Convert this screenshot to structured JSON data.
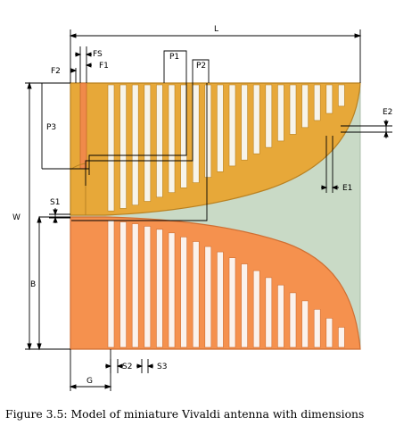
{
  "figure": {
    "caption": "Figure 3.5: Model of miniature Vivaldi antenna with dimensions",
    "colors": {
      "background_panel": "#c9dac6",
      "top_patch": "#e7a839",
      "top_patch_edge": "#b98222",
      "bottom_patch": "#f5914e",
      "bottom_patch_edge": "#cf6f33",
      "feed_line": "#f08a4a"
    },
    "dimensions": {
      "L": "L",
      "FS": "FS",
      "F1": "F1",
      "F2": "F2",
      "P1": "P1",
      "P2": "P2",
      "P3": "P3",
      "E1": "E1",
      "E2": "E2",
      "S1": "S1",
      "W": "W",
      "B": "B",
      "G": "G",
      "S2": "S2",
      "S3": "S3"
    }
  }
}
